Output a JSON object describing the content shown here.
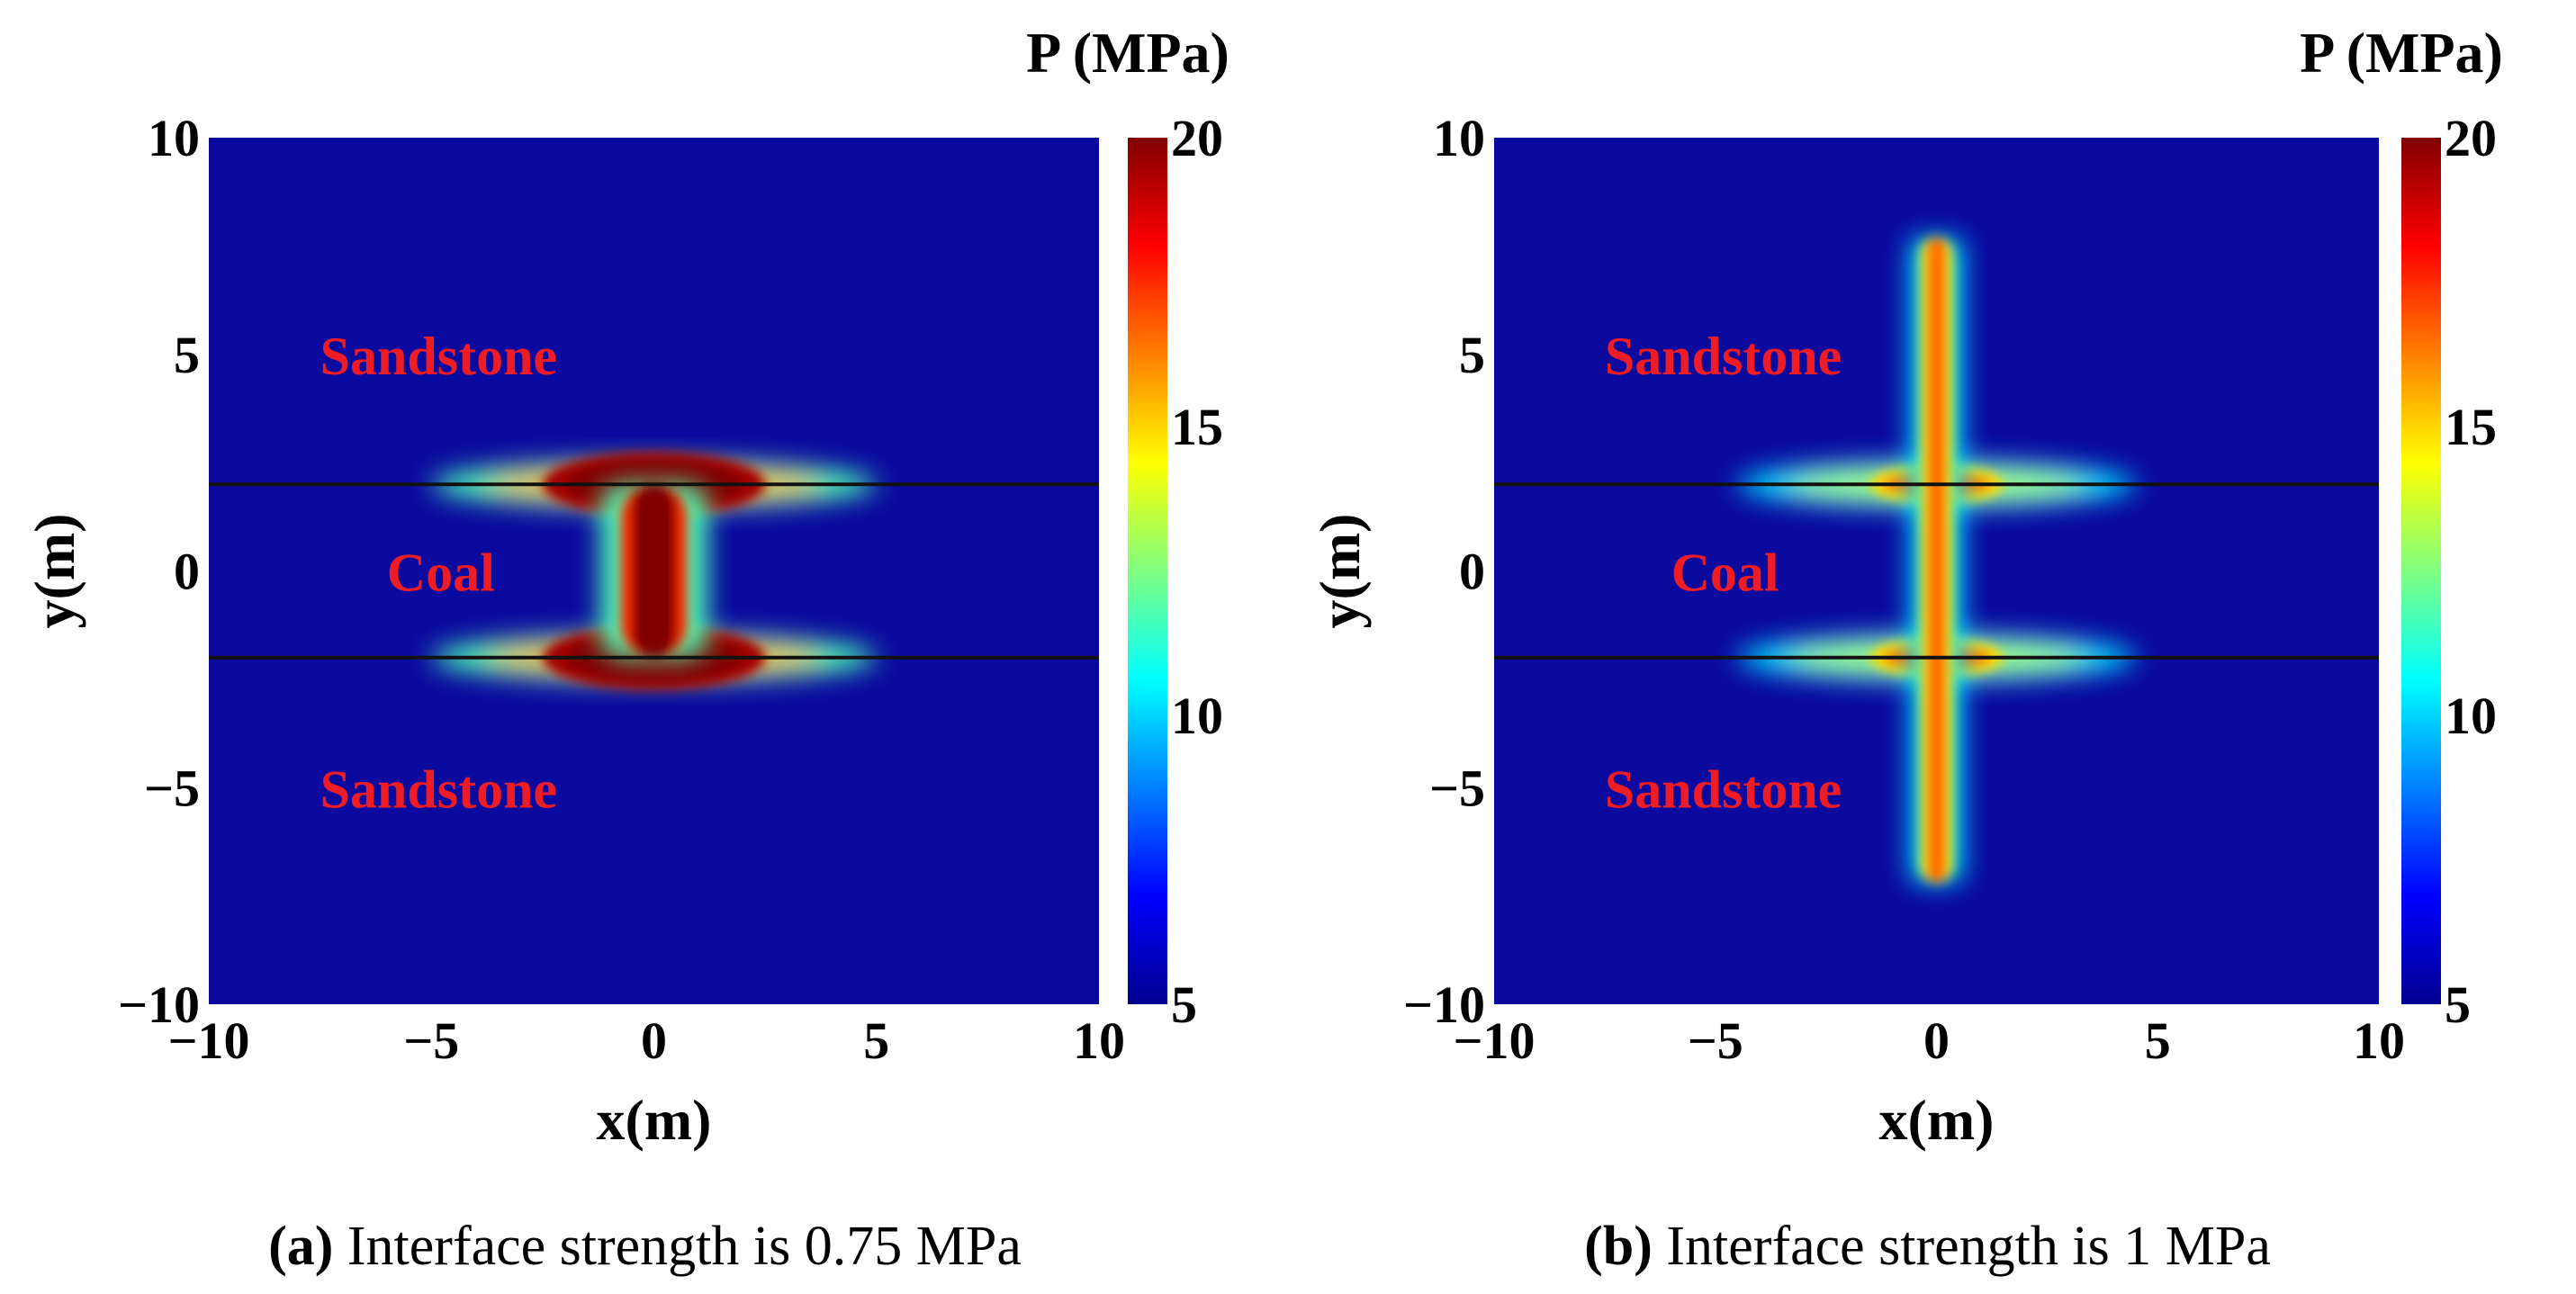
{
  "chart_data": [
    {
      "type": "heatmap",
      "panel_label": "(a)",
      "caption": "Interface strength is 0.75 MPa",
      "xlabel": "x(m)",
      "ylabel": "y(m)",
      "xlim": [
        -10,
        10
      ],
      "ylim": [
        -10,
        10
      ],
      "xticks": [
        "−10",
        "−5",
        "0",
        "5",
        "10"
      ],
      "yticks": [
        "10",
        "5",
        "0",
        "−5",
        "−10"
      ],
      "colorbar": {
        "title": "P (MPa)",
        "range": [
          5,
          20
        ],
        "ticks": [
          "20",
          "15",
          "10",
          "5"
        ]
      },
      "interfaces_y": [
        2,
        -2
      ],
      "regions": [
        {
          "name": "Sandstone",
          "x": -7.5,
          "y": 5
        },
        {
          "name": "Coal",
          "x": -6,
          "y": 0
        },
        {
          "name": "Sandstone",
          "x": -7.5,
          "y": -5
        }
      ],
      "background_pressure": 5,
      "fracture": {
        "kind": "confined",
        "core_half_width": 0.5,
        "core_y_extent": [
          -2,
          2
        ],
        "core_pressure": 20,
        "interface_lobe_half_width": 2.5,
        "interface_spread_half_width": 5,
        "peak_pressure": 20
      }
    },
    {
      "type": "heatmap",
      "panel_label": "(b)",
      "caption": "Interface strength is 1 MPa",
      "xlabel": "x(m)",
      "ylabel": "y(m)",
      "xlim": [
        -10,
        10
      ],
      "ylim": [
        -10,
        10
      ],
      "xticks": [
        "−10",
        "−5",
        "0",
        "5",
        "10"
      ],
      "yticks": [
        "10",
        "5",
        "0",
        "−5",
        "−10"
      ],
      "colorbar": {
        "title": "P (MPa)",
        "range": [
          5,
          20
        ],
        "ticks": [
          "20",
          "15",
          "10",
          "5"
        ]
      },
      "interfaces_y": [
        2,
        -2
      ],
      "regions": [
        {
          "name": "Sandstone",
          "x": -7.5,
          "y": 5
        },
        {
          "name": "Coal",
          "x": -6,
          "y": 0
        },
        {
          "name": "Sandstone",
          "x": -7.5,
          "y": -5
        }
      ],
      "background_pressure": 5,
      "fracture": {
        "kind": "crossing",
        "core_half_width": 0.25,
        "core_y_extent": [
          -7.2,
          7.7
        ],
        "core_pressure": 16.5,
        "interface_lobe_half_width": 1.5,
        "interface_spread_half_width": 4.5,
        "peak_pressure": 16.5
      }
    }
  ]
}
